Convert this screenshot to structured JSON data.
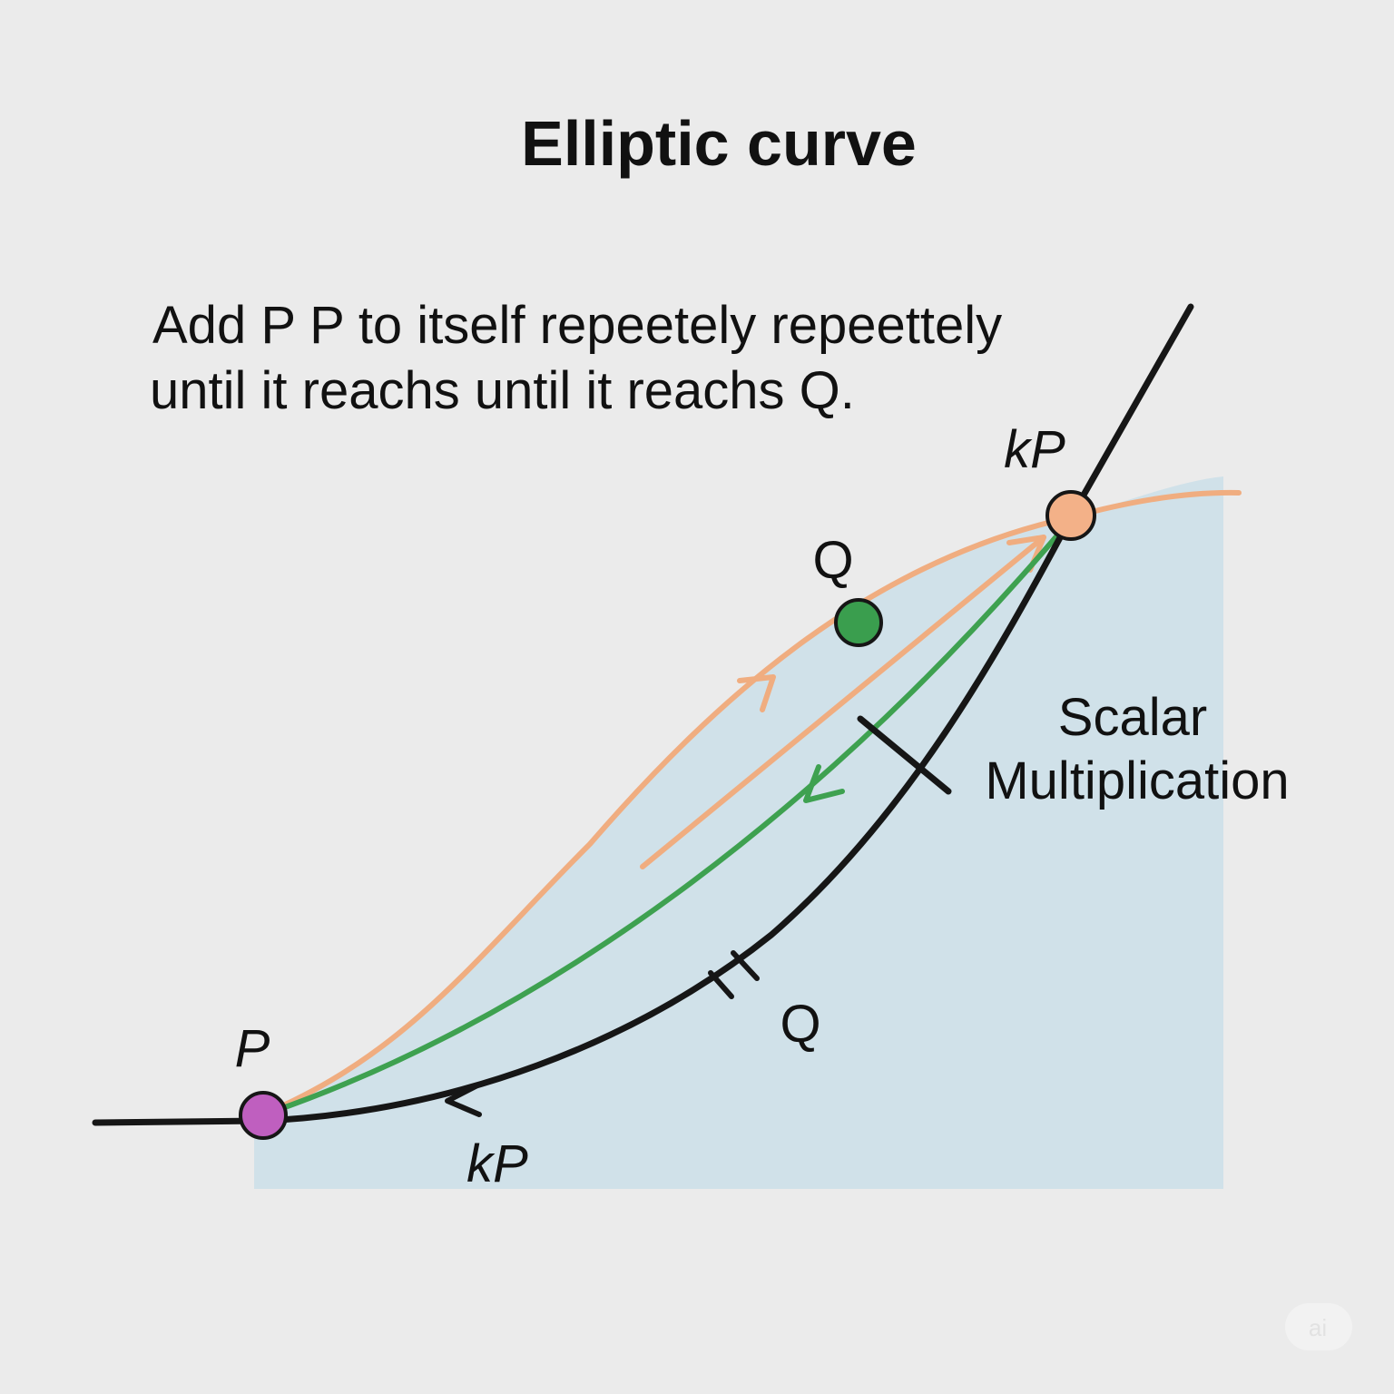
{
  "title": "Elliptic curve",
  "description": [
    "Add P P to itself repeetely repeettely",
    "until it reachs until it reachs Q."
  ],
  "points": [
    {
      "label": "P"
    },
    {
      "label": "Q"
    },
    {
      "label": "kP"
    }
  ],
  "annotations": {
    "scalar_multiplication": [
      "Scalar",
      "Multiplication"
    ],
    "lower_q": "Q",
    "lower_kp": "kP"
  },
  "watermark": "ai"
}
